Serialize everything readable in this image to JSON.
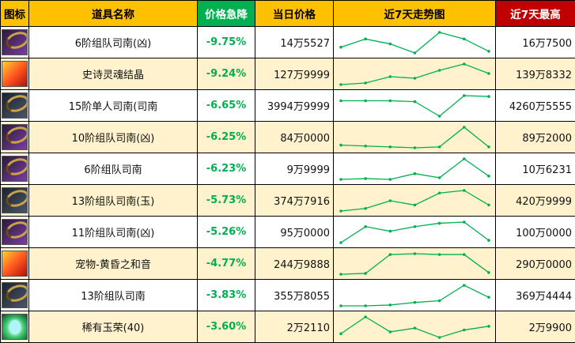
{
  "headers": {
    "icon": "图标",
    "name": "道具名称",
    "drop": "价格急降",
    "price": "当日价格",
    "trend": "近7天走势图",
    "max": "近7天最高"
  },
  "colors": {
    "header_gold": "#ffc000",
    "header_green": "#00b050",
    "header_red": "#c00000",
    "row_alt": "#fff2cc",
    "drop_text": "#00b050",
    "spark_line": "#00b050"
  },
  "rows": [
    {
      "icon": "purple-armor-icon",
      "name": "6阶组队司南(凶)",
      "drop": "-9.75%",
      "price": "14万5527",
      "max": "16万7500",
      "trend": [
        10,
        20,
        14,
        3,
        28,
        20,
        5
      ]
    },
    {
      "icon": "red-soul-icon",
      "name": "史诗灵魂结晶",
      "drop": "-9.24%",
      "price": "127万9999",
      "max": "139万8332",
      "trend": [
        5,
        6,
        10,
        9,
        14,
        18,
        12
      ]
    },
    {
      "icon": "dark-armor-icon",
      "name": "15阶单人司南(司南",
      "drop": "-6.65%",
      "price": "3994万9999",
      "max": "4260万5555",
      "trend": [
        20,
        20,
        20,
        19,
        2,
        26,
        25
      ]
    },
    {
      "icon": "purple-armor-icon",
      "name": "10阶组队司南(凶)",
      "drop": "-6.25%",
      "price": "84万0000",
      "max": "89万2000",
      "trend": [
        8,
        7,
        6,
        5,
        6,
        28,
        6
      ]
    },
    {
      "icon": "purple-armor-icon",
      "name": "6阶组队司南",
      "drop": "-6.23%",
      "price": "9万9999",
      "max": "10万6231",
      "trend": [
        3,
        4,
        3,
        10,
        5,
        28,
        7
      ]
    },
    {
      "icon": "dark-armor-icon",
      "name": "13阶组队司南(玉)",
      "drop": "-5.73%",
      "price": "374万7916",
      "max": "420万9999",
      "trend": [
        3,
        6,
        15,
        10,
        24,
        27,
        10
      ]
    },
    {
      "icon": "purple-armor-icon",
      "name": "11阶组队司南(凶)",
      "drop": "-5.26%",
      "price": "95万0000",
      "max": "100万0000",
      "trend": [
        8,
        22,
        18,
        22,
        25,
        26,
        10
      ]
    },
    {
      "icon": "red-pet-icon",
      "name": "宠物-黄昏之和音",
      "drop": "-4.77%",
      "price": "244万9888",
      "max": "290万0000",
      "trend": [
        3,
        4,
        27,
        28,
        27,
        27,
        5
      ]
    },
    {
      "icon": "dark-armor-icon",
      "name": "13阶组队司南",
      "drop": "-3.83%",
      "price": "355万8055",
      "max": "369万4444",
      "trend": [
        4,
        4,
        5,
        8,
        10,
        28,
        14
      ]
    },
    {
      "icon": "green-gem-icon",
      "name": "稀有玉荣(40)",
      "drop": "-3.60%",
      "price": "2万2110",
      "max": "2万9900",
      "trend": [
        10,
        28,
        12,
        16,
        6,
        14,
        18
      ]
    }
  ]
}
